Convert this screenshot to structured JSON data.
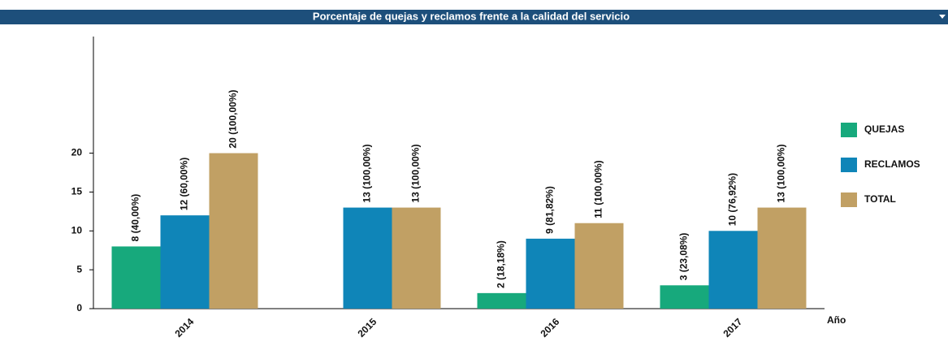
{
  "chart_data": {
    "type": "bar",
    "title": "Porcentaje de quejas y reclamos frente a la calidad del servicio",
    "xlabel": "Año",
    "categories": [
      "2014",
      "2015",
      "2016",
      "2017"
    ],
    "series": [
      {
        "name": "QUEJAS",
        "color": "#17a97c",
        "values": [
          8,
          null,
          2,
          3
        ],
        "value_labels": [
          "8 (40,00%)",
          null,
          "2 (18,18%)",
          "3 (23,08%)"
        ]
      },
      {
        "name": "RECLAMOS",
        "color": "#0f85b8",
        "values": [
          12,
          13,
          9,
          10
        ],
        "value_labels": [
          "12 (60,00%)",
          "13 (100,00%)",
          "9 (81,82%)",
          "10 (76,92%)"
        ]
      },
      {
        "name": "TOTAL",
        "color": "#c1a064",
        "values": [
          20,
          13,
          11,
          13
        ],
        "value_labels": [
          "20 (100,00%)",
          "13 (100,00%)",
          "11 (100,00%)",
          "13 (100,00%)"
        ]
      }
    ],
    "ylim": [
      0,
      35
    ],
    "yticks": [
      0,
      5,
      10,
      15,
      20
    ],
    "legend": "right"
  }
}
